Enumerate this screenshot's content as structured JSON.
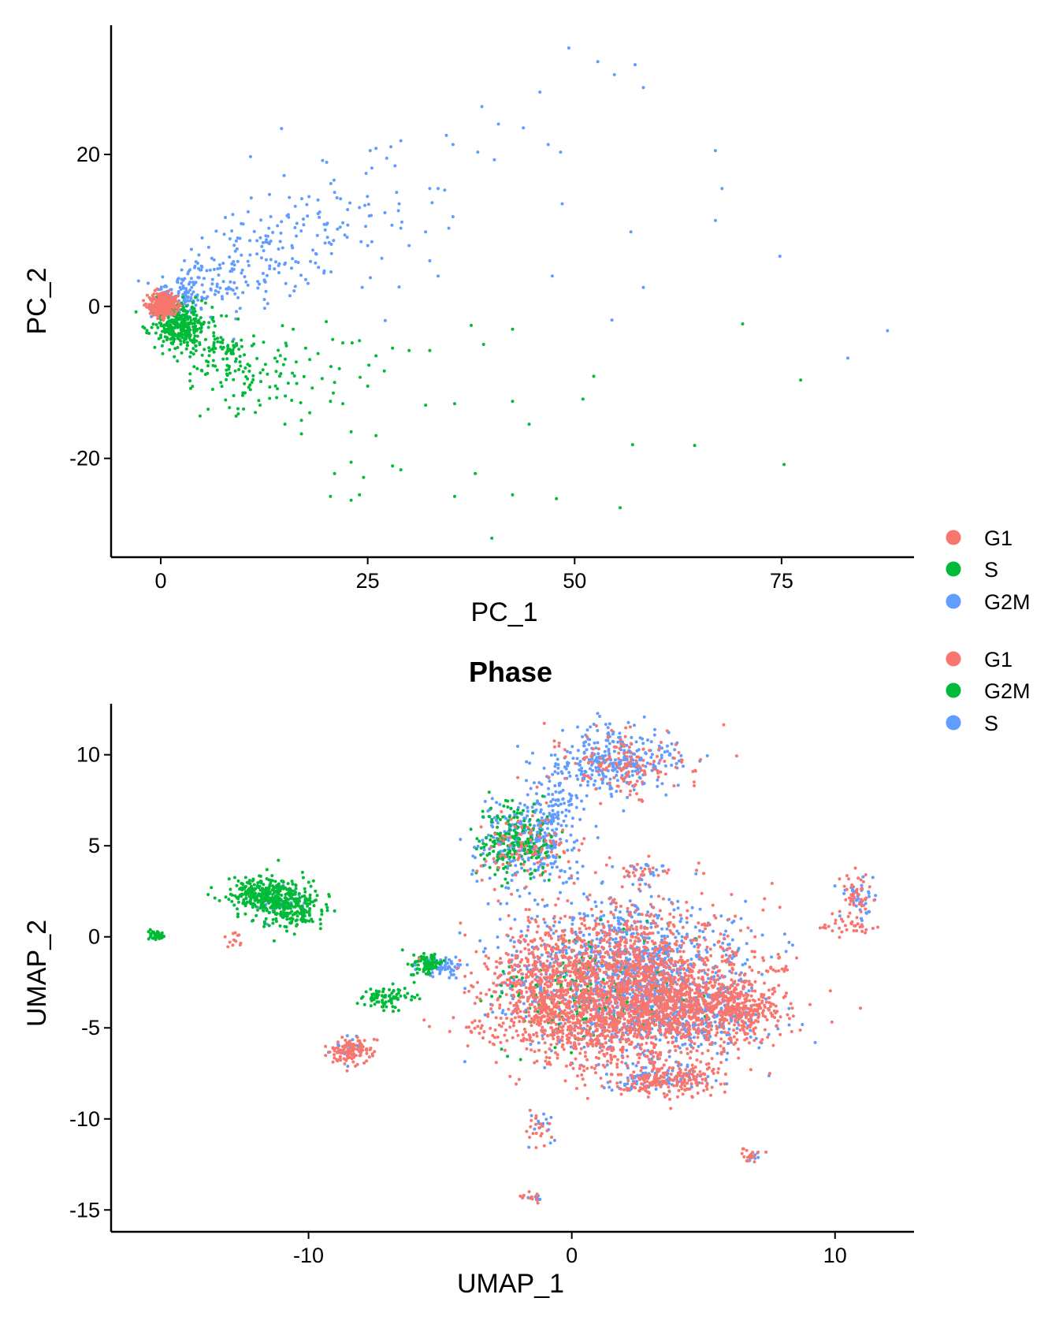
{
  "colors": {
    "red": "#F8766D",
    "green": "#00BA38",
    "blue": "#619CFF",
    "axis": "#000000"
  },
  "chart_data": [
    {
      "type": "scatter",
      "title": "",
      "xlabel": "PC_1",
      "ylabel": "PC_2",
      "xlim": [
        -6,
        91
      ],
      "ylim": [
        -33,
        37
      ],
      "xticks": [
        0,
        25,
        50,
        75
      ],
      "yticks": [
        -20,
        0,
        20
      ],
      "grid": false,
      "legend": "right",
      "series": [
        {
          "name": "G1",
          "color": "#F8766D",
          "regions": [
            {
              "cx": 0.3,
              "cy": 0.2,
              "sx": 0.8,
              "sy": 0.7,
              "n": 380
            }
          ],
          "points": []
        },
        {
          "name": "S",
          "color": "#00BA38",
          "regions": [
            {
              "cx": 2.2,
              "cy": -2.6,
              "sx": 1.6,
              "sy": 1.5,
              "n": 320
            },
            {
              "cx": 6.0,
              "cy": -6.0,
              "sx": 2.2,
              "sy": 1.9,
              "n": 90
            },
            {
              "cx": 12.0,
              "cy": -9.0,
              "sx": 4.5,
              "sy": 3.0,
              "n": 90
            }
          ],
          "points": [
            [
              20.5,
              -25
            ],
            [
              23,
              -25.5
            ],
            [
              24,
              -24.8
            ],
            [
              21,
              -22
            ],
            [
              23,
              -20.5
            ],
            [
              24.5,
              -22.5
            ],
            [
              28,
              -21
            ],
            [
              29,
              -21.5
            ],
            [
              26,
              -17
            ],
            [
              23,
              -16.5
            ],
            [
              20.5,
              -12.5
            ],
            [
              22,
              -12.8
            ],
            [
              18,
              -14
            ],
            [
              15,
              -15.5
            ],
            [
              17,
              -15
            ],
            [
              12,
              -13
            ],
            [
              10,
              -13.5
            ],
            [
              35.5,
              -25
            ],
            [
              38,
              -22
            ],
            [
              40,
              -30.5
            ],
            [
              42.5,
              -24.8
            ],
            [
              47.8,
              -25.3
            ],
            [
              55.5,
              -26.5
            ],
            [
              57,
              -18.2
            ],
            [
              64.5,
              -18.3
            ],
            [
              75.3,
              -20.8
            ],
            [
              77.3,
              -9.7
            ],
            [
              70.3,
              -2.3
            ],
            [
              51,
              -12.2
            ],
            [
              52.3,
              -9.2
            ],
            [
              44.5,
              -15.5
            ],
            [
              42.5,
              -12.5
            ],
            [
              35.5,
              -12.8
            ],
            [
              32,
              -13
            ],
            [
              39,
              -5
            ],
            [
              42.5,
              -3
            ],
            [
              37.5,
              -2.5
            ],
            [
              30,
              -5.8
            ],
            [
              32.5,
              -5.8
            ],
            [
              28,
              -5.5
            ],
            [
              26,
              -6.5
            ],
            [
              24,
              -4.5
            ],
            [
              22,
              -4.8
            ],
            [
              19,
              -6.2
            ],
            [
              17.5,
              -5.5
            ],
            [
              16,
              -3
            ],
            [
              20,
              -2
            ],
            [
              21,
              -10
            ],
            [
              19.5,
              -9.5
            ],
            [
              18,
              -7
            ],
            [
              25,
              -10.5
            ],
            [
              27,
              -8.5
            ],
            [
              14,
              -12
            ],
            [
              11,
              -10
            ],
            [
              9,
              -8.5
            ]
          ]
        },
        {
          "name": "G2M",
          "color": "#619CFF",
          "regions": [
            {
              "cx": 2.0,
              "cy": 0.8,
              "sx": 1.6,
              "sy": 1.4,
              "n": 120
            },
            {
              "cx": 6.0,
              "cy": 3.5,
              "sx": 3.0,
              "sy": 2.2,
              "n": 90
            },
            {
              "cx": 13.0,
              "cy": 7.0,
              "sx": 4.0,
              "sy": 3.5,
              "n": 100
            },
            {
              "cx": 20.0,
              "cy": 10.0,
              "sx": 4.5,
              "sy": 4.5,
              "n": 60
            }
          ],
          "points": [
            [
              49.3,
              34
            ],
            [
              52.8,
              32.2
            ],
            [
              54.8,
              30.5
            ],
            [
              57.3,
              31.8
            ],
            [
              58.3,
              28.8
            ],
            [
              45.8,
              28.2
            ],
            [
              38.8,
              26.3
            ],
            [
              40.8,
              24
            ],
            [
              43.8,
              23.5
            ],
            [
              46.8,
              21.3
            ],
            [
              48.3,
              20.3
            ],
            [
              40.3,
              19.3
            ],
            [
              38.3,
              20.3
            ],
            [
              35.3,
              21.3
            ],
            [
              34.5,
              22.5
            ],
            [
              29,
              21.8
            ],
            [
              27.8,
              21
            ],
            [
              25.3,
              20.5
            ],
            [
              26,
              20.8
            ],
            [
              27.3,
              19.5
            ],
            [
              28.3,
              18.5
            ],
            [
              24.8,
              17.5
            ],
            [
              25.5,
              18.2
            ],
            [
              32.5,
              15.5
            ],
            [
              33.5,
              15.5
            ],
            [
              34.3,
              15.3
            ],
            [
              48.5,
              13.5
            ],
            [
              67,
              20.5
            ],
            [
              67.8,
              15.5
            ],
            [
              67,
              11.3
            ],
            [
              56.8,
              9.8
            ],
            [
              35.3,
              11.8
            ],
            [
              34.8,
              10.3
            ],
            [
              32,
              9.8
            ],
            [
              29,
              10.3
            ],
            [
              25.5,
              8.5
            ],
            [
              25,
              8
            ],
            [
              24.2,
              8.5
            ],
            [
              28.8,
              13.5
            ],
            [
              28.5,
              15
            ],
            [
              58.3,
              2.5
            ],
            [
              54.5,
              -1.8
            ],
            [
              47.3,
              4
            ],
            [
              74.8,
              6.6
            ],
            [
              87.8,
              -3.2
            ],
            [
              83,
              -6.8
            ],
            [
              33.5,
              4
            ],
            [
              32.5,
              6
            ],
            [
              30,
              8
            ],
            [
              22,
              11
            ],
            [
              24,
              13
            ],
            [
              21,
              15
            ],
            [
              19,
              14
            ]
          ]
        }
      ]
    },
    {
      "type": "scatter",
      "title": "Phase",
      "xlabel": "UMAP_1",
      "ylabel": "UMAP_2",
      "xlim": [
        -17.5,
        13
      ],
      "ylim": [
        -16.2,
        12.8
      ],
      "xticks": [
        -10,
        0,
        10
      ],
      "yticks": [
        -15,
        -10,
        -5,
        0,
        5,
        10
      ],
      "grid": false,
      "legend": "right",
      "series": [
        {
          "name": "G1",
          "color": "#F8766D",
          "regions": [
            {
              "cx": 2.0,
              "cy": -2.5,
              "sx": 2.3,
              "sy": 2.0,
              "n": 1600
            },
            {
              "cx": 4.8,
              "cy": -4.0,
              "sx": 1.5,
              "sy": 1.0,
              "n": 450
            },
            {
              "cx": 0.6,
              "cy": -4.8,
              "sx": 1.8,
              "sy": 1.1,
              "n": 450
            },
            {
              "cx": -1.0,
              "cy": -2.0,
              "sx": 0.9,
              "sy": 1.4,
              "n": 250
            },
            {
              "cx": 6.8,
              "cy": -4.0,
              "sx": 0.6,
              "sy": 0.6,
              "n": 150
            },
            {
              "cx": 3.5,
              "cy": -7.8,
              "sx": 1.3,
              "sy": 0.5,
              "n": 220
            },
            {
              "cx": 2.0,
              "cy": 9.5,
              "sx": 1.3,
              "sy": 0.9,
              "n": 150
            },
            {
              "cx": -1.6,
              "cy": 5.0,
              "sx": 0.9,
              "sy": 0.9,
              "n": 90
            },
            {
              "cx": -8.4,
              "cy": -6.3,
              "sx": 0.4,
              "sy": 0.35,
              "n": 110
            },
            {
              "cx": 10.8,
              "cy": 2.3,
              "sx": 0.35,
              "sy": 0.6,
              "n": 50
            },
            {
              "cx": 10.4,
              "cy": 0.5,
              "sx": 0.6,
              "sy": 0.25,
              "n": 30
            },
            {
              "cx": 2.8,
              "cy": 3.5,
              "sx": 0.8,
              "sy": 0.3,
              "n": 30
            },
            {
              "cx": -12.8,
              "cy": -0.1,
              "sx": 0.15,
              "sy": 0.2,
              "n": 12
            },
            {
              "cx": -1.2,
              "cy": -10.5,
              "sx": 0.3,
              "sy": 0.5,
              "n": 20
            },
            {
              "cx": 6.8,
              "cy": -12.0,
              "sx": 0.25,
              "sy": 0.2,
              "n": 18
            },
            {
              "cx": -1.5,
              "cy": -14.3,
              "sx": 0.25,
              "sy": 0.15,
              "n": 12
            },
            {
              "cx": 7.9,
              "cy": -1.8,
              "sx": 0.3,
              "sy": 0.1,
              "n": 12
            },
            {
              "cx": -3.5,
              "cy": -5.1,
              "sx": 0.4,
              "sy": 0.15,
              "n": 10
            }
          ],
          "points": []
        },
        {
          "name": "G2M",
          "color": "#00BA38",
          "regions": [
            {
              "cx": -11.6,
              "cy": 2.3,
              "sx": 0.7,
              "sy": 0.5,
              "n": 320
            },
            {
              "cx": -10.6,
              "cy": 1.5,
              "sx": 0.6,
              "sy": 0.5,
              "n": 200
            },
            {
              "cx": -15.8,
              "cy": 0.1,
              "sx": 0.15,
              "sy": 0.15,
              "n": 40
            },
            {
              "cx": -2.2,
              "cy": 5.3,
              "sx": 0.7,
              "sy": 1.0,
              "n": 200
            },
            {
              "cx": -5.5,
              "cy": -1.5,
              "sx": 0.3,
              "sy": 0.35,
              "n": 90
            },
            {
              "cx": -7.0,
              "cy": -3.3,
              "sx": 0.5,
              "sy": 0.3,
              "n": 90
            },
            {
              "cx": 0.5,
              "cy": -3.0,
              "sx": 1.8,
              "sy": 1.5,
              "n": 150
            }
          ],
          "points": []
        },
        {
          "name": "S",
          "color": "#619CFF",
          "regions": [
            {
              "cx": 2.0,
              "cy": -2.0,
              "sx": 2.2,
              "sy": 2.0,
              "n": 1100
            },
            {
              "cx": 4.5,
              "cy": -4.2,
              "sx": 1.4,
              "sy": 1.0,
              "n": 300
            },
            {
              "cx": 1.6,
              "cy": 9.7,
              "sx": 1.3,
              "sy": 0.9,
              "n": 320
            },
            {
              "cx": -1.6,
              "cy": 5.2,
              "sx": 1.0,
              "sy": 1.1,
              "n": 320
            },
            {
              "cx": -0.5,
              "cy": 7.5,
              "sx": 0.5,
              "sy": 0.8,
              "n": 60
            },
            {
              "cx": 3.5,
              "cy": -7.8,
              "sx": 1.2,
              "sy": 0.4,
              "n": 90
            },
            {
              "cx": -5.0,
              "cy": -1.6,
              "sx": 0.4,
              "sy": 0.3,
              "n": 70
            },
            {
              "cx": -8.4,
              "cy": -6.2,
              "sx": 0.3,
              "sy": 0.3,
              "n": 20
            },
            {
              "cx": 10.8,
              "cy": 2.0,
              "sx": 0.35,
              "sy": 0.6,
              "n": 40
            },
            {
              "cx": 2.8,
              "cy": 3.6,
              "sx": 0.6,
              "sy": 0.3,
              "n": 20
            },
            {
              "cx": -1.1,
              "cy": -10.5,
              "sx": 0.3,
              "sy": 0.5,
              "n": 15
            },
            {
              "cx": 6.8,
              "cy": -12.1,
              "sx": 0.2,
              "sy": 0.15,
              "n": 10
            },
            {
              "cx": -1.4,
              "cy": -14.4,
              "sx": 0.2,
              "sy": 0.15,
              "n": 8
            },
            {
              "cx": -11.0,
              "cy": 2.0,
              "sx": 0.6,
              "sy": 0.5,
              "n": 30
            }
          ],
          "points": []
        }
      ]
    }
  ],
  "legends": [
    {
      "items": [
        {
          "label": "G1",
          "color": "#F8766D"
        },
        {
          "label": "S",
          "color": "#00BA38"
        },
        {
          "label": "G2M",
          "color": "#619CFF"
        }
      ]
    },
    {
      "items": [
        {
          "label": "G1",
          "color": "#F8766D"
        },
        {
          "label": "G2M",
          "color": "#00BA38"
        },
        {
          "label": "S",
          "color": "#619CFF"
        }
      ]
    }
  ]
}
